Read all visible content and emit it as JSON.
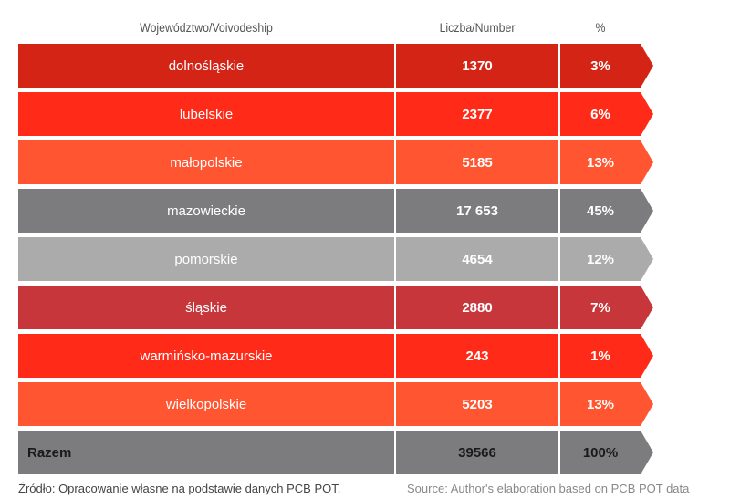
{
  "header": {
    "region": "Województwo/Voivodeship",
    "number": "Liczba/Number",
    "pct": "%"
  },
  "rows": [
    {
      "region": "dolnośląskie",
      "number": "1370",
      "pct": "3%",
      "color": "#d42416"
    },
    {
      "region": "lubelskie",
      "number": "2377",
      "pct": "6%",
      "color": "#ff2a18"
    },
    {
      "region": "małopolskie",
      "number": "5185",
      "pct": "13%",
      "color": "#ff5530"
    },
    {
      "region": "mazowieckie",
      "number": "17 653",
      "pct": "45%",
      "color": "#7c7c7e"
    },
    {
      "region": "pomorskie",
      "number": "4654",
      "pct": "12%",
      "color": "#ababab"
    },
    {
      "region": "śląskie",
      "number": "2880",
      "pct": "7%",
      "color": "#c6363a"
    },
    {
      "region": "warmińsko-mazurskie",
      "number": "243",
      "pct": "1%",
      "color": "#ff2a18"
    },
    {
      "region": "wielkopolskie",
      "number": "5203",
      "pct": "13%",
      "color": "#ff5530"
    },
    {
      "region": "Razem",
      "number": "39566",
      "pct": "100%",
      "color": "#7c7c7e",
      "total": true
    }
  ],
  "footer": {
    "source_pl": "Źródło: Opracowanie własne na podstawie danych PCB POT.",
    "source_en": "Source: Author's elaboration based on PCB POT data"
  }
}
